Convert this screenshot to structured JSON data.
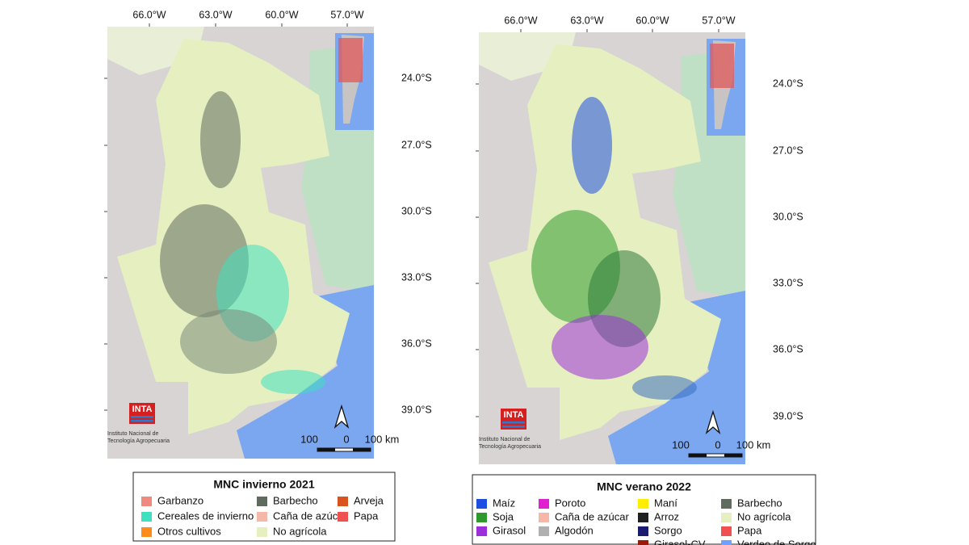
{
  "maps": [
    {
      "lon_labels": [
        "66.0°W",
        "63.0°W",
        "60.0°W",
        "57.0°W"
      ],
      "lat_labels": [
        "24.0°S",
        "27.0°S",
        "30.0°S",
        "33.0°S",
        "36.0°S",
        "39.0°S"
      ],
      "scale_labels": [
        "100",
        "0",
        "100 km"
      ],
      "logo": "INTA",
      "institute": [
        "Instituto Nacional de",
        "Tecnología Agropecuaria"
      ],
      "legend": {
        "title": "MNC invierno 2021",
        "columns": [
          [
            {
              "label": "Garbanzo",
              "color": "#f08a80"
            },
            {
              "label": "Cereales de invierno",
              "color": "#3fe0c0"
            },
            {
              "label": "Otros cultivos",
              "color": "#ff8c1a"
            }
          ],
          [
            {
              "label": "Barbecho",
              "color": "#5f6b5f"
            },
            {
              "label": "Caña de azúcar",
              "color": "#f5b8a8"
            },
            {
              "label": "No agrícola",
              "color": "#e6efc0"
            }
          ],
          [
            {
              "label": "Arveja",
              "color": "#d9531e"
            },
            {
              "label": "Papa",
              "color": "#f05050"
            }
          ]
        ]
      }
    },
    {
      "lon_labels": [
        "66.0°W",
        "63.0°W",
        "60.0°W",
        "57.0°W"
      ],
      "lat_labels": [
        "24.0°S",
        "27.0°S",
        "30.0°S",
        "33.0°S",
        "36.0°S",
        "39.0°S"
      ],
      "scale_labels": [
        "100",
        "0",
        "100 km"
      ],
      "logo": "INTA",
      "institute": [
        "Instituto Nacional de",
        "Tecnología Agropecuaria"
      ],
      "legend": {
        "title": "MNC verano 2022",
        "columns": [
          [
            {
              "label": "Maíz",
              "color": "#1f4fe0"
            },
            {
              "label": "Soja",
              "color": "#2e9a2e"
            },
            {
              "label": "Girasol",
              "color": "#9b30d9"
            }
          ],
          [
            {
              "label": "Poroto",
              "color": "#e020d0"
            },
            {
              "label": "Caña de azúcar",
              "color": "#f5b8a8"
            },
            {
              "label": "Algodón",
              "color": "#b0b0b0"
            }
          ],
          [
            {
              "label": "Maní",
              "color": "#ffee00"
            },
            {
              "label": "Arroz",
              "color": "#202020"
            },
            {
              "label": "Sorgo",
              "color": "#1a1a6e"
            },
            {
              "label": "Girasol-CV",
              "color": "#9b1a0a"
            }
          ],
          [
            {
              "label": "Barbecho",
              "color": "#5f6b5f"
            },
            {
              "label": "No agrícola",
              "color": "#e6efc0"
            },
            {
              "label": "Papa",
              "color": "#f05050"
            },
            {
              "label": "Verdeo de Sorgo",
              "color": "#6fa0ff"
            }
          ]
        ]
      }
    }
  ]
}
